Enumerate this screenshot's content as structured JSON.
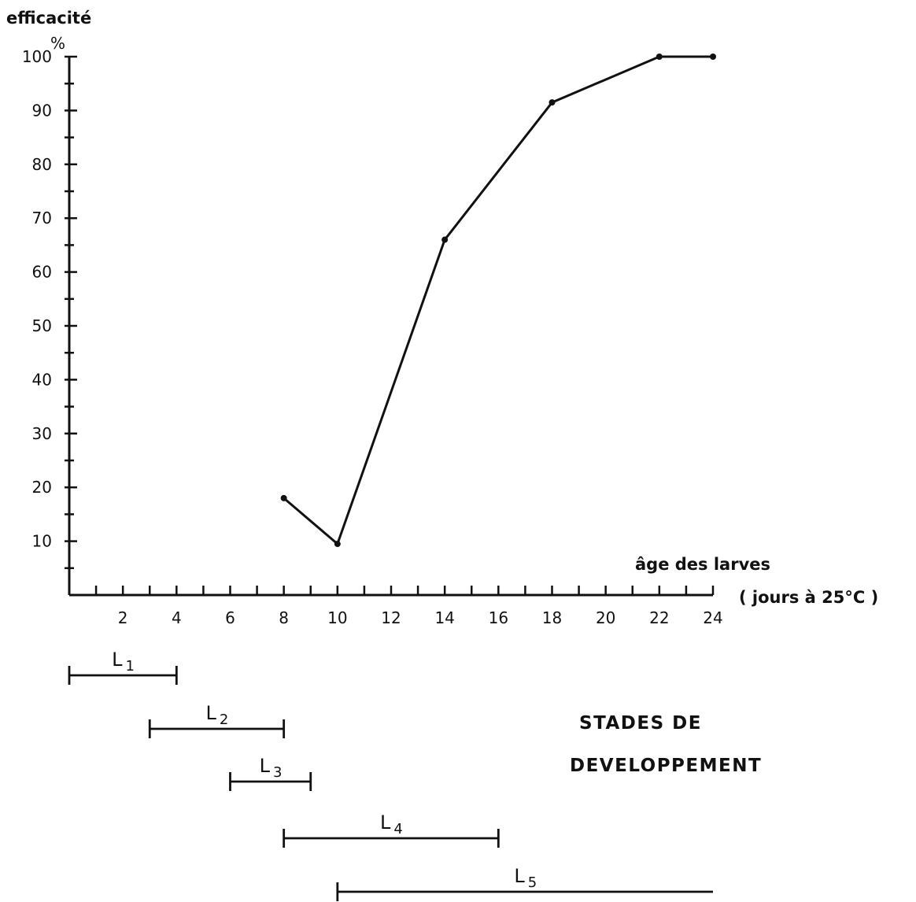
{
  "chart_data": {
    "type": "line",
    "title": "",
    "ylabel": "efficacité",
    "yunit": "%",
    "xlabel_line1": "âge des larves",
    "xlabel_line2": "( jours à 25°C )",
    "xlim": [
      0,
      24
    ],
    "ylim": [
      0,
      100
    ],
    "xticks": [
      2,
      4,
      6,
      8,
      10,
      12,
      14,
      16,
      18,
      20,
      22,
      24
    ],
    "yticks": [
      10,
      20,
      30,
      40,
      50,
      60,
      70,
      80,
      90,
      100
    ],
    "grid": false,
    "series": [
      {
        "x": [
          8,
          10,
          14,
          18,
          22,
          24
        ],
        "y": [
          18,
          9.5,
          66,
          91.5,
          100,
          100
        ]
      }
    ],
    "stages_title": [
      "STADES DE",
      "DEVELOPPEMENT"
    ],
    "stages": [
      {
        "label": "L",
        "sub": "1",
        "start": 0,
        "end": 4
      },
      {
        "label": "L",
        "sub": "2",
        "start": 3,
        "end": 8
      },
      {
        "label": "L",
        "sub": "3",
        "start": 6,
        "end": 9
      },
      {
        "label": "L",
        "sub": "4",
        "start": 8,
        "end": 16
      },
      {
        "label": "L",
        "sub": "5",
        "start": 10,
        "end": 24
      }
    ]
  }
}
